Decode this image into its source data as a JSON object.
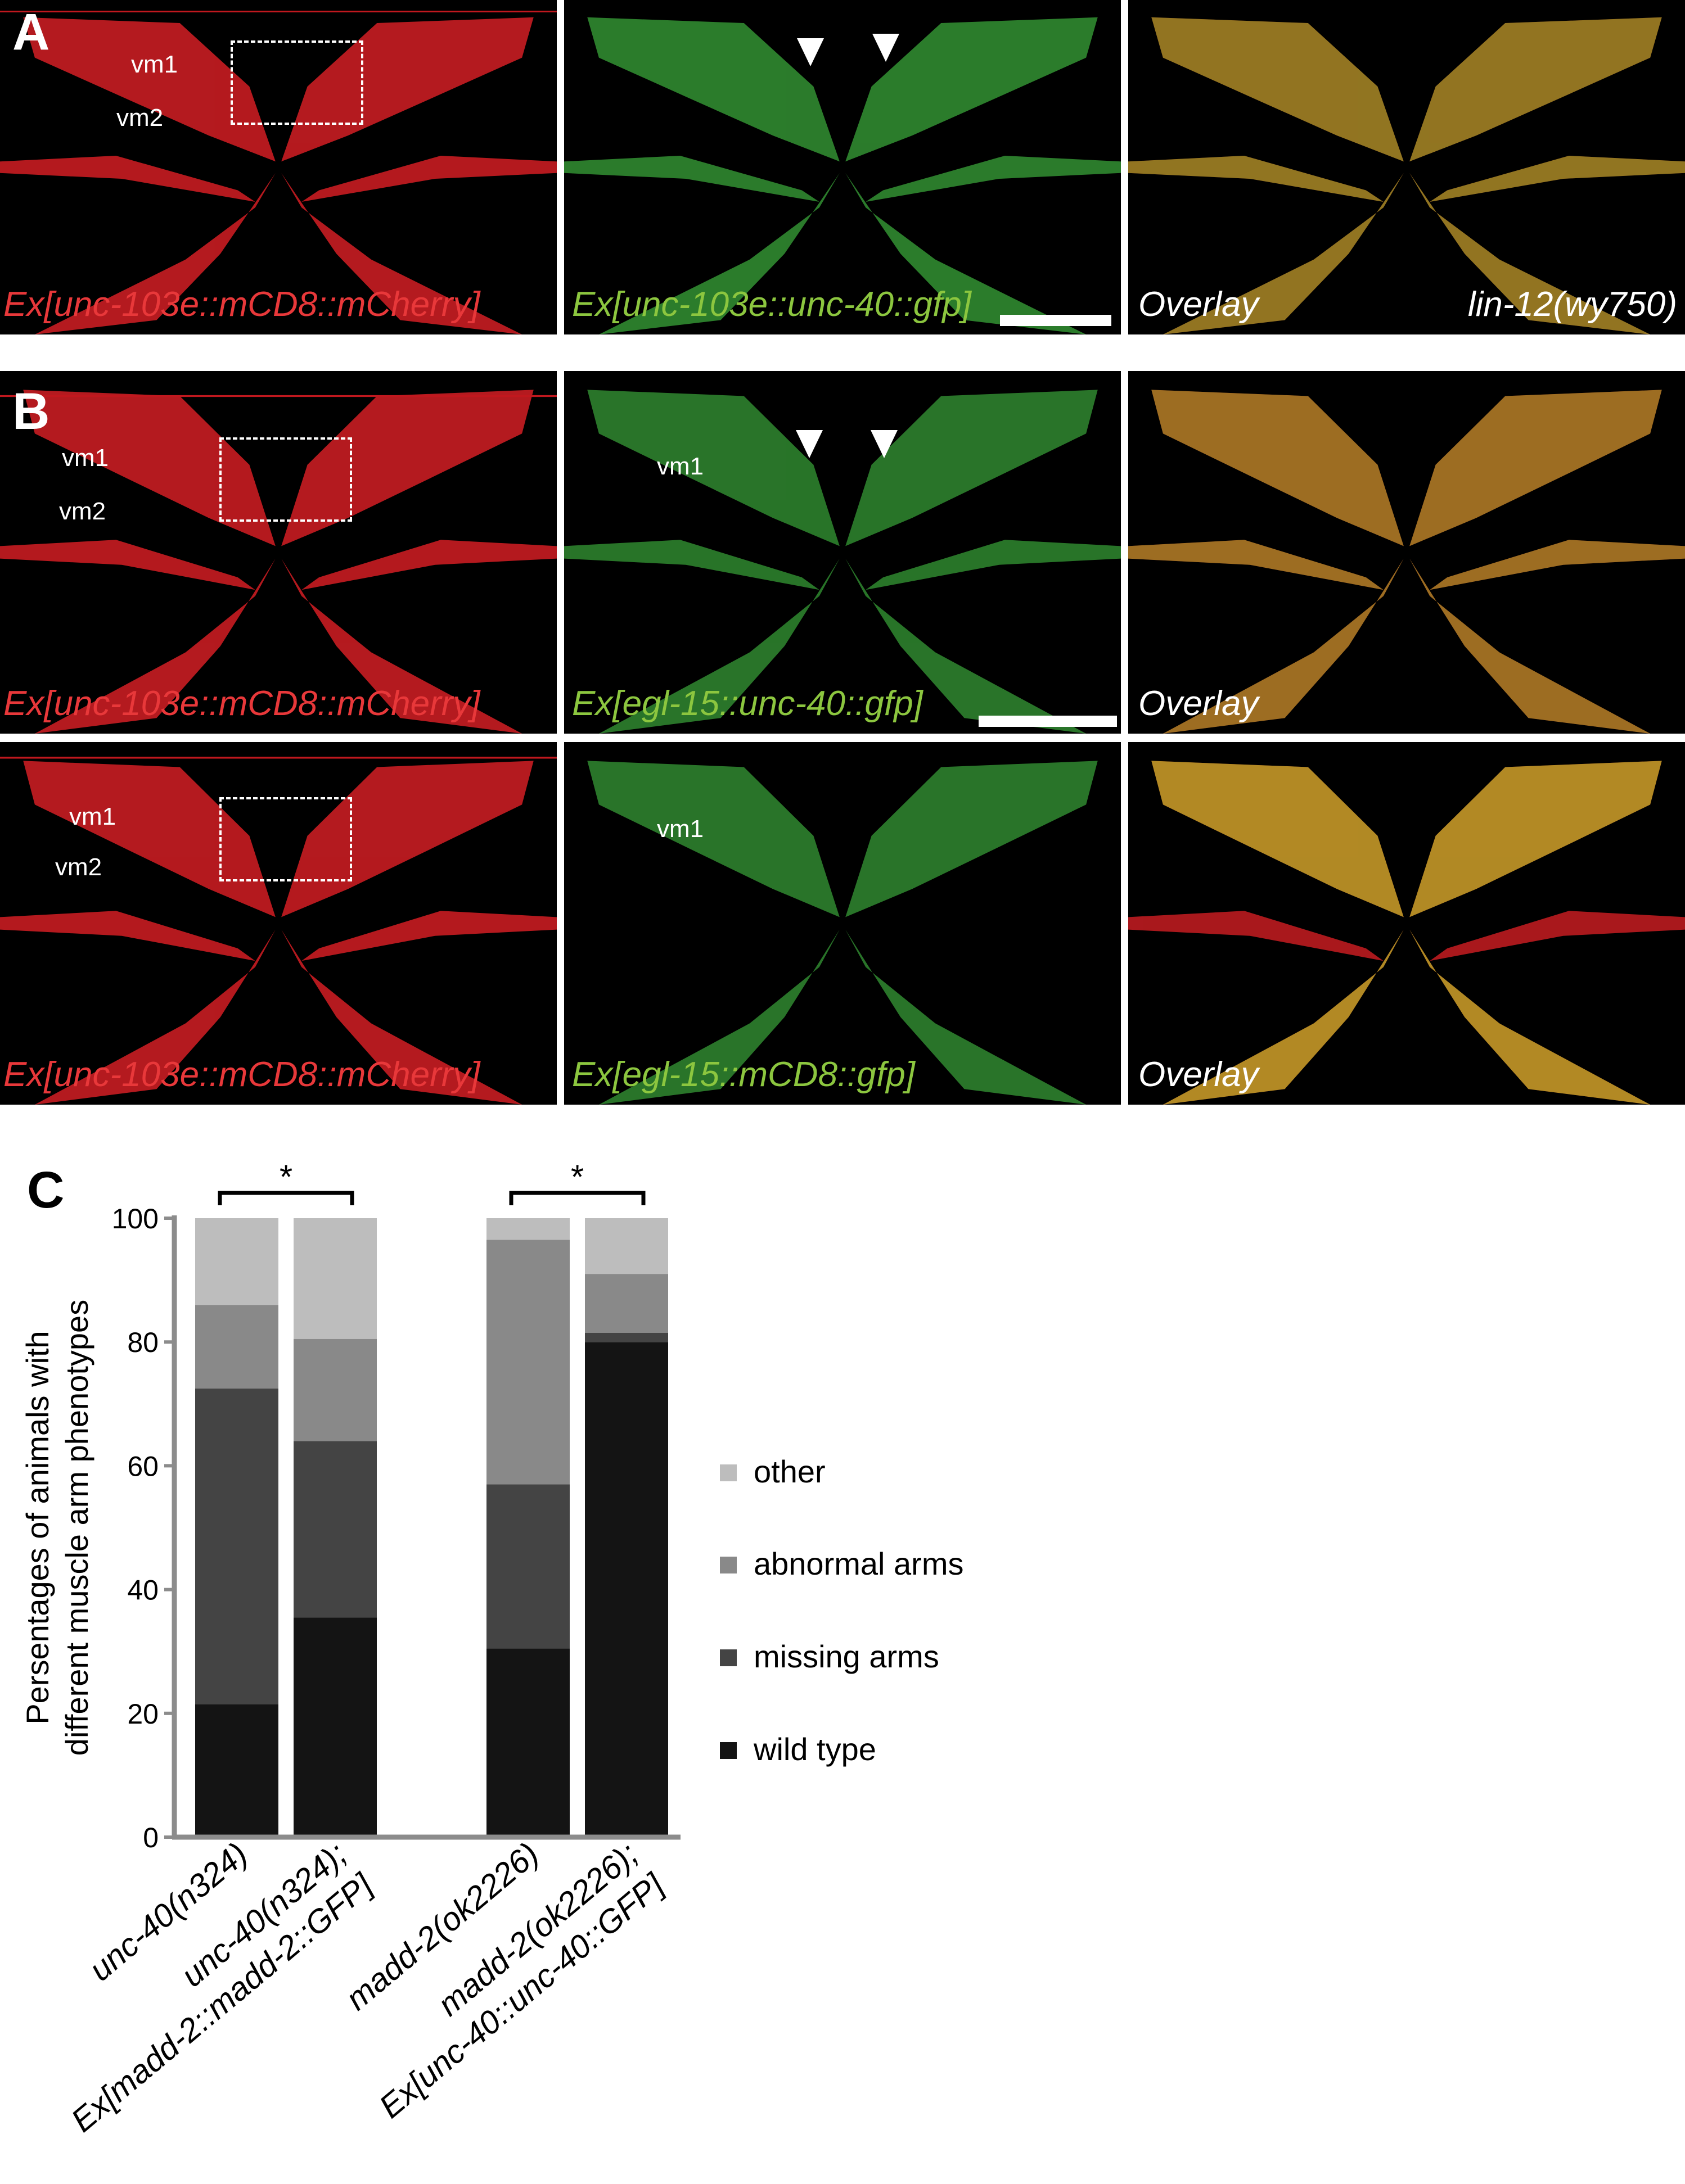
{
  "panel_labels": {
    "a": "A",
    "b": "B",
    "c": "C"
  },
  "row_a": {
    "red_caption": "Ex[unc-103e::mCD8::mCherry]",
    "green_caption": "Ex[unc-103e::unc-40::gfp]",
    "overlay_caption": "Overlay",
    "genotype": "lin-12(wy750)",
    "vm1": "vm1",
    "vm2": "vm2"
  },
  "row_b1": {
    "red_caption": "Ex[unc-103e::mCD8::mCherry]",
    "green_caption": "Ex[egl-15::unc-40::gfp]",
    "overlay_caption": "Overlay",
    "vm1": "vm1",
    "vm2": "vm2",
    "green_vm1": "vm1"
  },
  "row_b2": {
    "red_caption": "Ex[unc-103e::mCD8::mCherry]",
    "green_caption": "Ex[egl-15::mCD8::gfp]",
    "overlay_caption": "Overlay",
    "vm1": "vm1",
    "vm2": "vm2",
    "green_vm1": "vm1"
  },
  "colors": {
    "red": "#e8383a",
    "green": "#8cc63f",
    "wild_type": "#141414",
    "missing_arms": "#444444",
    "abnormal_arms": "#898989",
    "other": "#bdbdbd"
  },
  "chart_data": {
    "type": "bar",
    "stacked": true,
    "ylabel_line1": "Persentages of animals with",
    "ylabel_line2": "different muscle arm phenotypes",
    "ylim": [
      0,
      100
    ],
    "yticks": [
      0,
      20,
      40,
      60,
      80,
      100
    ],
    "categories": [
      {
        "line1": "unc-40(n324)",
        "line2": ""
      },
      {
        "line1": "unc-40(n324);",
        "line2": "Ex[madd-2::madd-2::GFP]"
      },
      {
        "line1": "madd-2(ok2226)",
        "line2": ""
      },
      {
        "line1": "madd-2(ok2226);",
        "line2": "Ex[unc-40::unc-40::GFP]"
      }
    ],
    "series": [
      {
        "name": "wild type",
        "values": [
          21.5,
          35.5,
          30.5,
          80
        ]
      },
      {
        "name": "missing arms",
        "values": [
          51,
          28.5,
          26.5,
          1.5
        ]
      },
      {
        "name": "abnormal arms",
        "values": [
          13.5,
          16.5,
          39.5,
          9.5
        ]
      },
      {
        "name": "other",
        "values": [
          14,
          19.5,
          3.5,
          9
        ]
      }
    ],
    "legend_order": [
      "other",
      "abnormal arms",
      "missing arms",
      "wild type"
    ],
    "legend_position": "right",
    "significance": [
      {
        "pair": [
          0,
          1
        ],
        "label": "*"
      },
      {
        "pair": [
          2,
          3
        ],
        "label": "*"
      }
    ]
  }
}
